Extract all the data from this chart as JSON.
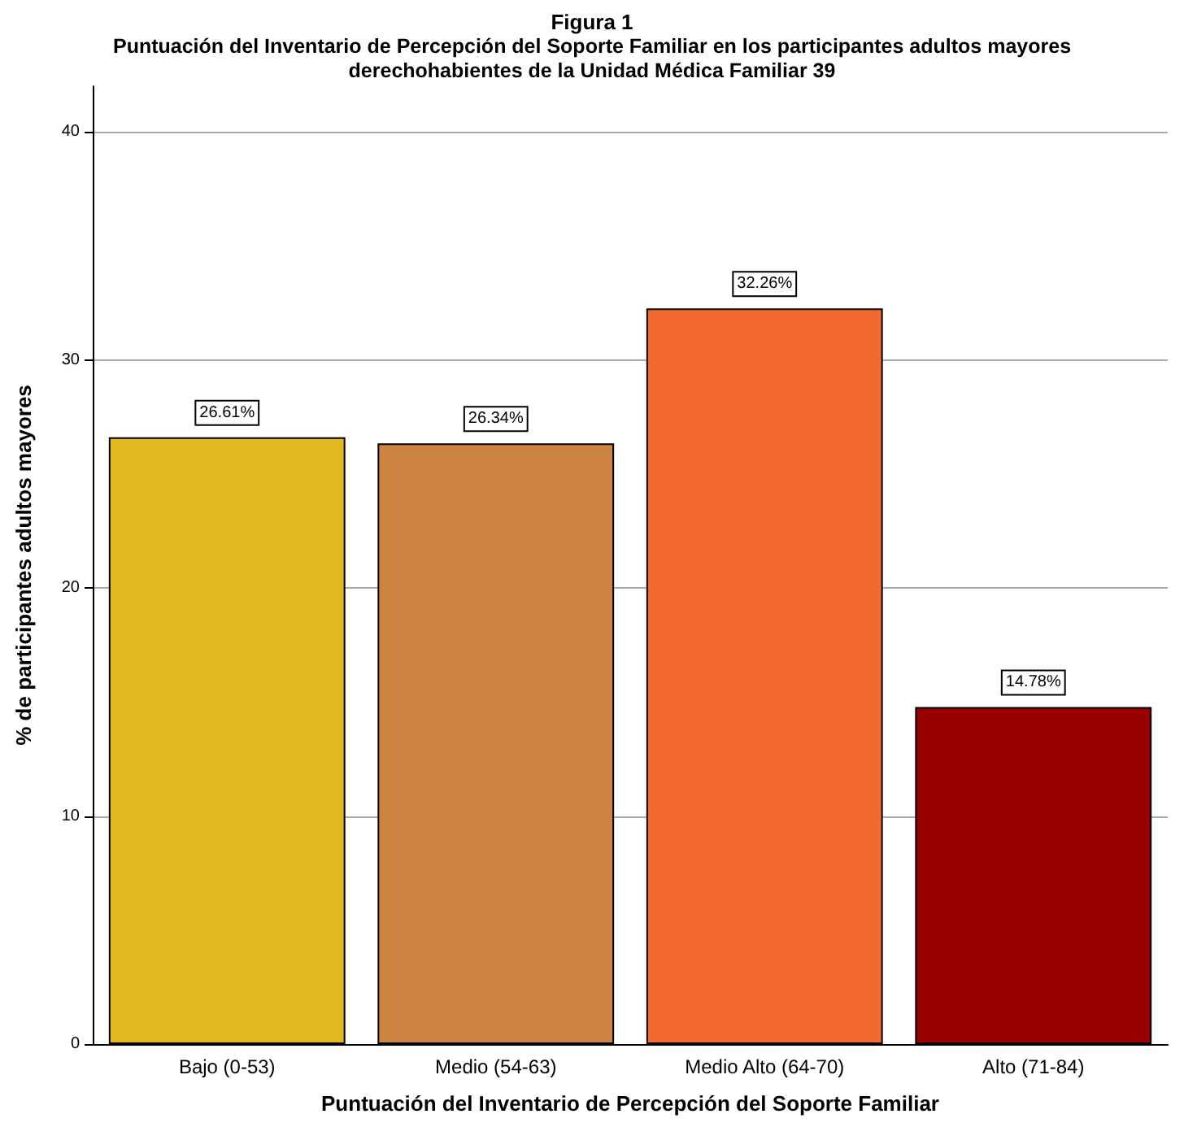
{
  "chart_data": {
    "type": "bar",
    "title": "Figura 1",
    "subtitle": "Puntuación del Inventario de Percepción del Soporte Familiar en los participantes adultos mayores derechohabientes de la Unidad Médica Familiar 39",
    "xlabel": "Puntuación del Inventario de Percepción del Soporte Familiar",
    "ylabel": "% de participantes adultos mayores",
    "categories": [
      "Bajo (0-53)",
      "Medio (54-63)",
      "Medio Alto (64-70)",
      "Alto (71-84)"
    ],
    "values": [
      26.61,
      26.34,
      32.26,
      14.78
    ],
    "colors": [
      "#e0b820",
      "#cd8440",
      "#f26a2e",
      "#990000"
    ],
    "value_labels": [
      "26.61%",
      "26.34%",
      "32.26%",
      "14.78%"
    ],
    "ylim": [
      0,
      42
    ],
    "yticks": [
      0,
      10,
      20,
      30,
      40
    ],
    "grid": "y"
  }
}
